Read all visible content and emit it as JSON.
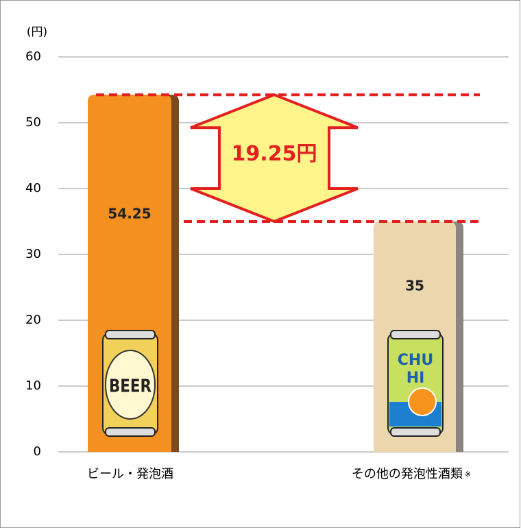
{
  "chart_data": {
    "type": "bar",
    "unit_label": "(円)",
    "categories": [
      "ビール・発泡酒",
      "その他の発泡性酒類"
    ],
    "note_mark": "※",
    "values": [
      54.25,
      35
    ],
    "colors": [
      "#f39020",
      "#ecd6ad"
    ],
    "shadow_colors": [
      "#7a4a1e",
      "#8a8580"
    ],
    "ylim": [
      0,
      60
    ],
    "yticks": [
      0,
      10,
      20,
      30,
      40,
      50,
      60
    ],
    "grid": true,
    "annotation": "19.25円",
    "can_labels": {
      "beer": "BEER",
      "chuhi": [
        "CHU",
        "HI"
      ]
    }
  }
}
